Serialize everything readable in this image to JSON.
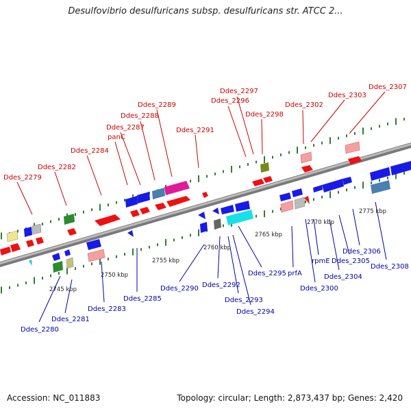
{
  "title": "Desulfovibrio desulfuricans subsp. desulfuricans str. ATCC 2...",
  "accession": "Accession: NC_011883",
  "summary": "Topology: circular; Length: 2,873,437 bp; Genes: 2,420",
  "colors": {
    "forward_label": "#cc0000",
    "reverse_label": "#0000aa",
    "backbone": "#888888",
    "tick": "#2e7d32",
    "red": "#ee1111",
    "blue": "#1a1ae6",
    "pink": "#f4a0a0",
    "gray": "#bbbbbb",
    "green": "#2e8b2e",
    "olive": "#7a8a1a",
    "magenta": "#e0189a",
    "steel": "#4a7fb0",
    "cyan": "#18e0e8",
    "yellow": "#f0e68c",
    "khaki": "#c8c078",
    "darkgray": "#666666"
  },
  "scale_labels": [
    "2745 kbp",
    "2750 kbp",
    "2755 kbp",
    "2760 kbp",
    "2765 kbp",
    "2770 kbp",
    "2775 kbp"
  ],
  "forward_labels": [
    {
      "text": "Ddes_2279"
    },
    {
      "text": "Ddes_2282"
    },
    {
      "text": "Ddes_2284"
    },
    {
      "text": "panC"
    },
    {
      "text": "Ddes_2287"
    },
    {
      "text": "Ddes_2288"
    },
    {
      "text": "Ddes_2289"
    },
    {
      "text": "Ddes_2291"
    },
    {
      "text": "Ddes_2296"
    },
    {
      "text": "Ddes_2297"
    },
    {
      "text": "Ddes_2298"
    },
    {
      "text": "Ddes_2302"
    },
    {
      "text": "Ddes_2303"
    },
    {
      "text": "Ddes_2307"
    }
  ],
  "reverse_labels": [
    {
      "text": "Ddes_2280"
    },
    {
      "text": "Ddes_2281"
    },
    {
      "text": "Ddes_2283"
    },
    {
      "text": "Ddes_2285"
    },
    {
      "text": "Ddes_2290"
    },
    {
      "text": "Ddes_2292"
    },
    {
      "text": "Ddes_2293"
    },
    {
      "text": "Ddes_2294"
    },
    {
      "text": "Ddes_2295"
    },
    {
      "text": "prfA"
    },
    {
      "text": "Ddes_2300"
    },
    {
      "text": "rpmE"
    },
    {
      "text": "Ddes_2304"
    },
    {
      "text": "Ddes_2305"
    },
    {
      "text": "Ddes_2306"
    },
    {
      "text": "Ddes_2308"
    }
  ]
}
